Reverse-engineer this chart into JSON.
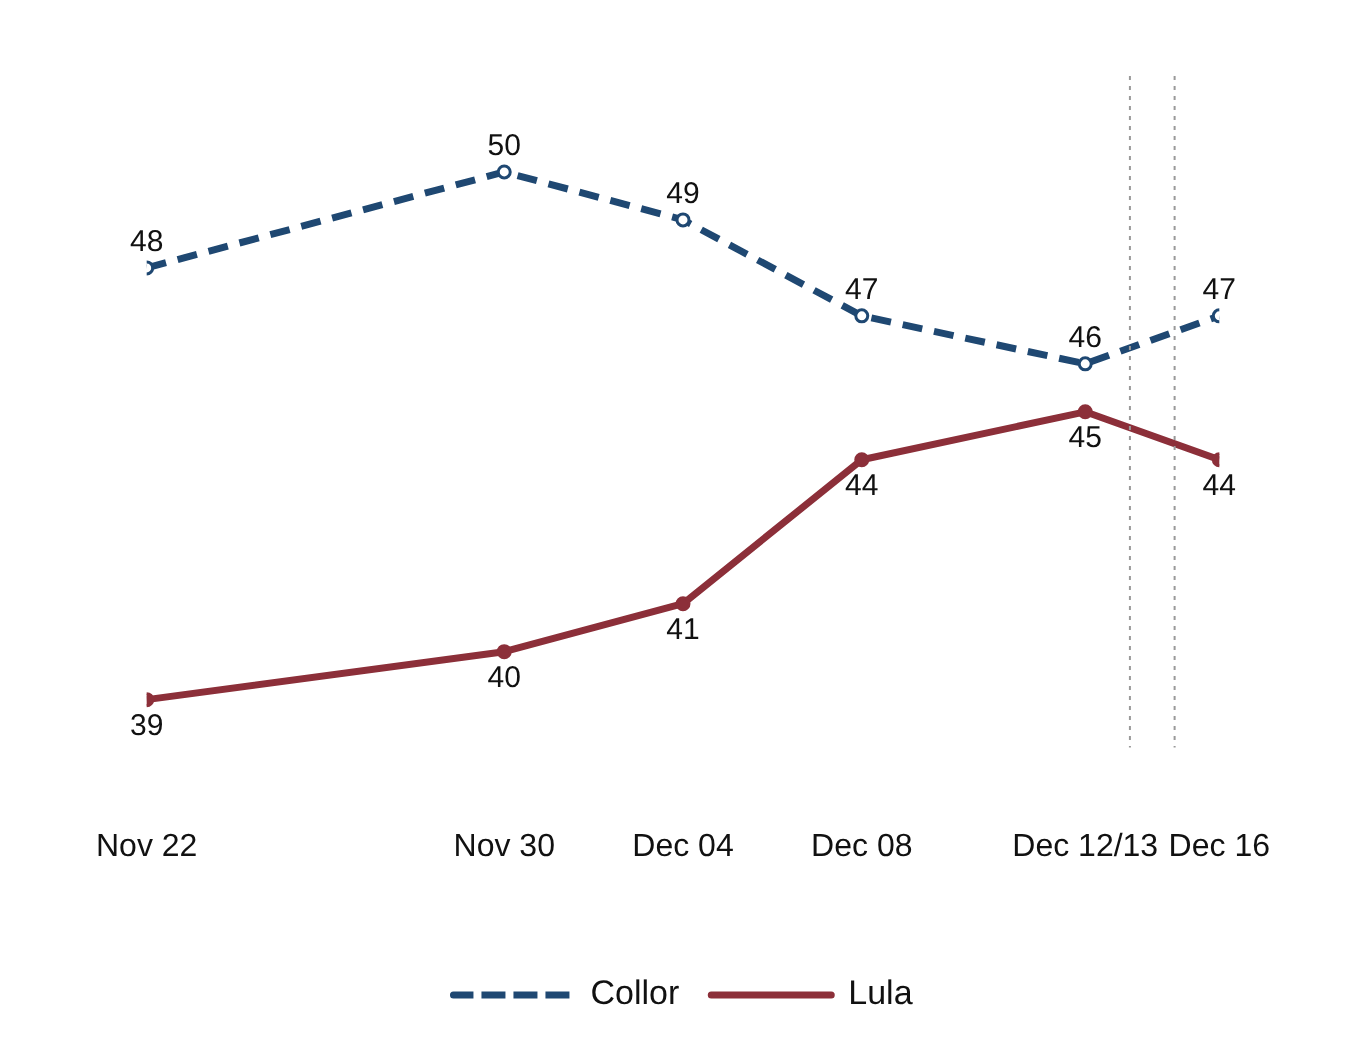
{
  "chart_data": {
    "type": "line",
    "x": [
      "--11-22",
      "--11-30",
      "--12-04",
      "--12-08",
      "--12-13",
      "--12-16"
    ],
    "series": [
      {
        "name": "Collor",
        "color": "#1f4872",
        "values": [
          48,
          50,
          49,
          47,
          46,
          47
        ],
        "line_style": "dashed",
        "marker": "circle"
      },
      {
        "name": "Lula",
        "color": "#8c2f39",
        "values": [
          39,
          40,
          41,
          44,
          45,
          44
        ],
        "line_style": "solid",
        "marker": "circle"
      }
    ],
    "xlim": [
      "--11-22",
      "--12-16"
    ],
    "xticks": [
      {
        "value": "--11-22",
        "label": "Nov 22"
      },
      {
        "value": "--11-30",
        "label": "Nov 30"
      },
      {
        "value": "--12-04",
        "label": "Dec 04"
      },
      {
        "value": "--12-08",
        "label": "Dec 08"
      },
      {
        "value": "--12-13",
        "label": "Dec 12/13"
      },
      {
        "value": "--12-16",
        "label": "Dec 16"
      }
    ],
    "tick_labels": "x",
    "data_labels": true,
    "grid": false,
    "legend": "bottom",
    "ref_lines": [
      {
        "axis": "x",
        "value": "--12-14",
        "color": "#999999",
        "line_style": "dotted"
      },
      {
        "axis": "x",
        "value": "--12-15",
        "color": "#999999",
        "line_style": "dotted"
      }
    ]
  }
}
